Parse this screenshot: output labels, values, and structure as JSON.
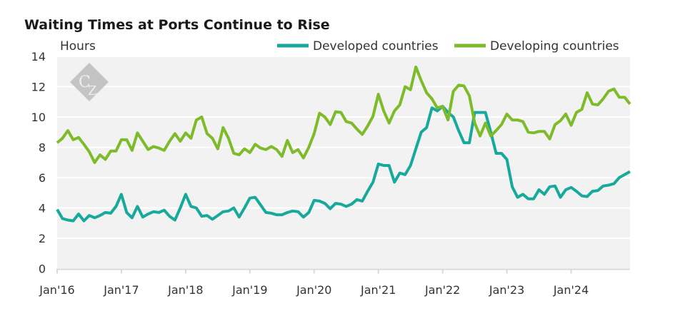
{
  "chart_data": {
    "type": "line",
    "title": "Waiting Times at Ports Continue to Rise",
    "ylabel": "Hours",
    "xlabel": "",
    "ylim": [
      0,
      14
    ],
    "yticks": [
      0,
      2,
      4,
      6,
      8,
      10,
      12,
      14
    ],
    "xtick_labels": [
      "Jan'16",
      "Jan'17",
      "Jan'18",
      "Jan'19",
      "Jan'20",
      "Jan'21",
      "Jan'22",
      "Jan'23",
      "Jan'24"
    ],
    "x_start": "Jan 2016",
    "x_end": "Dec 2024",
    "frequency": "monthly",
    "grid": true,
    "legend_position": "top-right",
    "watermark": "CZ",
    "series": [
      {
        "name": "Developed countries",
        "color": "#17a99b",
        "values": [
          3.9,
          3.3,
          3.2,
          3.15,
          3.6,
          3.15,
          3.5,
          3.35,
          3.5,
          3.7,
          3.65,
          4.1,
          4.9,
          3.7,
          3.35,
          4.1,
          3.4,
          3.6,
          3.75,
          3.7,
          3.85,
          3.45,
          3.2,
          4.0,
          4.9,
          4.1,
          4.0,
          3.45,
          3.5,
          3.25,
          3.5,
          3.75,
          3.8,
          4.0,
          3.4,
          4.0,
          4.65,
          4.7,
          4.2,
          3.7,
          3.65,
          3.55,
          3.55,
          3.7,
          3.8,
          3.75,
          3.4,
          3.7,
          4.5,
          4.45,
          4.3,
          3.95,
          4.3,
          4.25,
          4.1,
          4.25,
          4.55,
          4.45,
          5.1,
          5.7,
          6.9,
          6.8,
          6.8,
          5.7,
          6.3,
          6.2,
          6.8,
          7.9,
          9.0,
          9.3,
          10.6,
          10.4,
          10.7,
          10.3,
          10.0,
          9.1,
          8.3,
          8.3,
          10.3,
          10.3,
          10.3,
          9.0,
          7.6,
          7.6,
          7.2,
          5.4,
          4.7,
          4.9,
          4.6,
          4.6,
          5.2,
          4.9,
          5.4,
          5.45,
          4.7,
          5.2,
          5.35,
          5.1,
          4.8,
          4.75,
          5.1,
          5.15,
          5.45,
          5.5,
          5.6,
          6.0,
          6.2,
          6.4
        ]
      },
      {
        "name": "Developing countries",
        "color": "#7dbb2a",
        "values": [
          8.3,
          8.6,
          9.1,
          8.5,
          8.65,
          8.2,
          7.7,
          7.0,
          7.5,
          7.2,
          7.75,
          7.75,
          8.5,
          8.5,
          7.8,
          8.95,
          8.4,
          7.85,
          8.05,
          7.95,
          7.8,
          8.4,
          8.9,
          8.4,
          8.95,
          8.6,
          9.8,
          10.0,
          8.9,
          8.6,
          7.9,
          9.3,
          8.6,
          7.6,
          7.5,
          7.9,
          7.65,
          8.2,
          7.95,
          7.85,
          8.05,
          7.85,
          7.4,
          8.45,
          7.65,
          7.85,
          7.3,
          8.0,
          8.9,
          10.25,
          10.0,
          9.5,
          10.35,
          10.3,
          9.7,
          9.6,
          9.2,
          8.85,
          9.4,
          10.05,
          11.5,
          10.4,
          9.6,
          10.4,
          10.8,
          12.0,
          11.8,
          13.3,
          12.4,
          11.6,
          11.2,
          10.6,
          10.7,
          9.8,
          11.7,
          12.1,
          12.05,
          11.4,
          9.6,
          8.75,
          9.6,
          8.75,
          9.1,
          9.5,
          10.2,
          9.8,
          9.8,
          9.7,
          9.0,
          8.95,
          9.05,
          9.05,
          8.55,
          9.5,
          9.75,
          10.2,
          9.45,
          10.3,
          10.5,
          11.6,
          10.85,
          10.8,
          11.2,
          11.7,
          11.85,
          11.3,
          11.3,
          10.85
        ]
      }
    ]
  }
}
